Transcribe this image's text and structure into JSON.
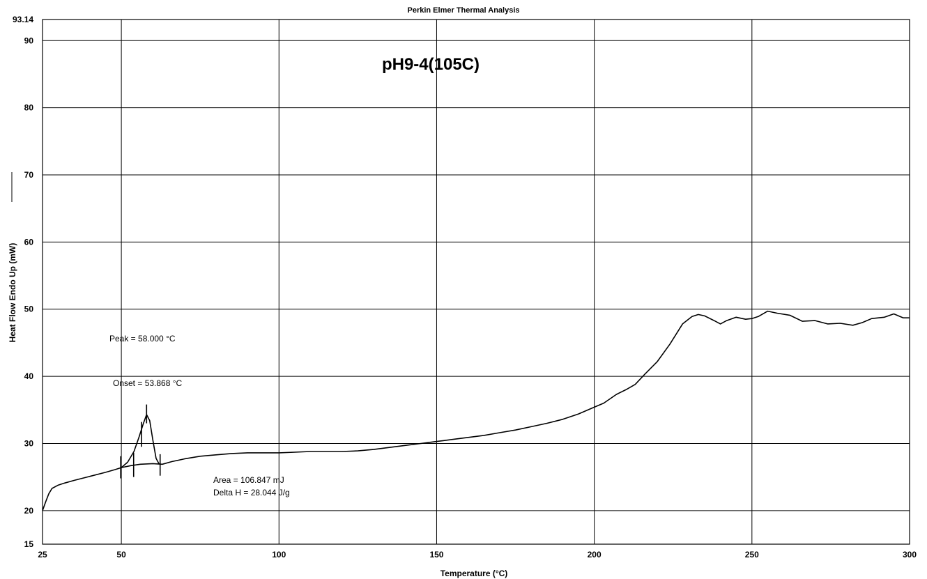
{
  "chart_data": {
    "type": "line",
    "header": "Perkin Elmer Thermal Analysis",
    "title": "pH9-4(105C)",
    "xlabel": "Temperature (°C)",
    "ylabel": "Heat Flow Endo Up (mW)",
    "xlim": [
      25,
      300
    ],
    "ylim": [
      15,
      93.14
    ],
    "x_ticks": [
      "25",
      "50",
      "100",
      "150",
      "200",
      "250",
      "300"
    ],
    "y_ticks": [
      "15",
      "20",
      "30",
      "40",
      "50",
      "60",
      "70",
      "80",
      "90",
      "93.14"
    ],
    "grid": true,
    "series": [
      {
        "name": "",
        "color": "#000000",
        "points": [
          [
            25,
            20.0
          ],
          [
            26,
            21.3
          ],
          [
            27,
            22.5
          ],
          [
            28,
            23.3
          ],
          [
            30,
            23.8
          ],
          [
            32,
            24.1
          ],
          [
            35,
            24.5
          ],
          [
            40,
            25.1
          ],
          [
            45,
            25.7
          ],
          [
            48,
            26.1
          ],
          [
            50,
            26.4
          ],
          [
            53,
            26.7
          ],
          [
            56,
            26.9
          ],
          [
            60,
            27.0
          ],
          [
            63,
            26.9
          ],
          [
            66,
            27.3
          ],
          [
            70,
            27.7
          ],
          [
            75,
            28.1
          ],
          [
            80,
            28.3
          ],
          [
            85,
            28.5
          ],
          [
            90,
            28.6
          ],
          [
            95,
            28.6
          ],
          [
            100,
            28.6
          ],
          [
            105,
            28.7
          ],
          [
            110,
            28.8
          ],
          [
            115,
            28.8
          ],
          [
            120,
            28.8
          ],
          [
            125,
            28.9
          ],
          [
            130,
            29.1
          ],
          [
            135,
            29.4
          ],
          [
            140,
            29.7
          ],
          [
            145,
            30.0
          ],
          [
            150,
            30.3
          ],
          [
            155,
            30.6
          ],
          [
            160,
            30.9
          ],
          [
            165,
            31.2
          ],
          [
            170,
            31.6
          ],
          [
            175,
            32.0
          ],
          [
            180,
            32.5
          ],
          [
            185,
            33.0
          ],
          [
            190,
            33.6
          ],
          [
            195,
            34.4
          ],
          [
            200,
            35.4
          ],
          [
            203,
            36.0
          ],
          [
            207,
            37.3
          ],
          [
            210,
            38.0
          ],
          [
            213,
            38.8
          ],
          [
            216,
            40.3
          ],
          [
            220,
            42.2
          ],
          [
            224,
            44.8
          ],
          [
            228,
            47.8
          ],
          [
            231,
            48.9
          ],
          [
            233,
            49.2
          ],
          [
            235,
            49.0
          ],
          [
            238,
            48.3
          ],
          [
            240,
            47.8
          ],
          [
            242,
            48.3
          ],
          [
            245,
            48.8
          ],
          [
            248,
            48.5
          ],
          [
            250,
            48.6
          ],
          [
            252,
            48.9
          ],
          [
            255,
            49.7
          ],
          [
            258,
            49.4
          ],
          [
            262,
            49.1
          ],
          [
            266,
            48.2
          ],
          [
            270,
            48.3
          ],
          [
            274,
            47.8
          ],
          [
            278,
            47.9
          ],
          [
            282,
            47.6
          ],
          [
            285,
            48.0
          ],
          [
            288,
            48.6
          ],
          [
            292,
            48.8
          ],
          [
            295,
            49.3
          ],
          [
            298,
            48.7
          ],
          [
            300,
            48.7
          ]
        ]
      },
      {
        "name": "",
        "color": "#000000",
        "points": [
          [
            50,
            26.4
          ],
          [
            52,
            27.2
          ],
          [
            54,
            28.8
          ],
          [
            55.5,
            30.8
          ],
          [
            57,
            33.0
          ],
          [
            58,
            34.3
          ],
          [
            59,
            33.4
          ],
          [
            60,
            30.5
          ],
          [
            61,
            27.8
          ],
          [
            62,
            26.9
          ]
        ]
      }
    ],
    "markers": [
      {
        "x": 49.8,
        "y_low": 24.8,
        "y_high": 28.1
      },
      {
        "x": 53.9,
        "y_low": 25.0,
        "y_high": 28.6
      },
      {
        "x": 56.4,
        "y_low": 29.5,
        "y_high": 33.2
      },
      {
        "x": 58.0,
        "y_low": 33.0,
        "y_high": 35.8
      },
      {
        "x": 62.3,
        "y_low": 25.2,
        "y_high": 28.4
      }
    ],
    "annotations": {
      "peak": "Peak = 58.000 °C",
      "onset": "Onset = 53.868 °C",
      "area": "Area = 106.847 mJ",
      "delta_h": "Delta H = 28.044 J/g"
    }
  }
}
